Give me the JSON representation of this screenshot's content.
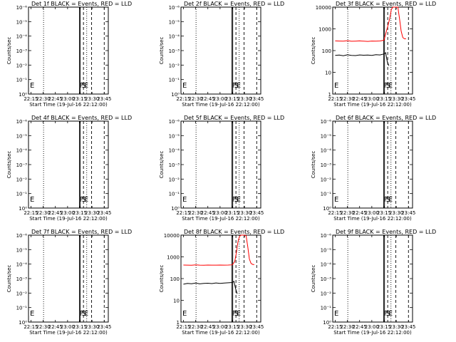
{
  "figure": {
    "x_label": "Start Time (19-Jul-16 22:12:00)",
    "y_label": "Counts/sec"
  },
  "chart_data": [
    {
      "type": "line",
      "title": "Det 1f BLACK = Events, RED = LLD",
      "x_ticks": [
        "22:15",
        "22:30",
        "22:45",
        "23:00",
        "23:15",
        "23:30",
        "23:45"
      ],
      "y_ticks": [
        "10⁰",
        "10⁻¹",
        "10⁻²",
        "10⁻³",
        "10⁻⁴",
        "10⁻⁵",
        "10⁻⁶"
      ],
      "markers": [
        "E",
        "F",
        "S",
        "E"
      ],
      "series": []
    },
    {
      "type": "line",
      "title": "Det 2f BLACK = Events, RED = LLD",
      "x_ticks": [
        "22:15",
        "22:30",
        "22:45",
        "23:00",
        "23:15",
        "23:30",
        "23:45"
      ],
      "y_ticks": [
        "10⁰",
        "10⁻¹",
        "10⁻²",
        "10⁻³",
        "10⁻⁴",
        "10⁻⁵",
        "10⁻⁶"
      ],
      "markers": [
        "E",
        "F",
        "S",
        "E"
      ],
      "series": []
    },
    {
      "type": "line",
      "title": "Det 3f BLACK = Events, RED = LLD",
      "x_ticks": [
        "22:15",
        "22:30",
        "22:45",
        "23:00",
        "23:15",
        "23:30",
        "23:45"
      ],
      "y_ticks": [
        "1",
        "10",
        "100",
        "1000",
        "10000"
      ],
      "markers": [
        "E",
        "F",
        "S",
        "E"
      ],
      "series": [
        {
          "color": "#000000",
          "x": [
            0,
            5,
            10,
            15,
            20,
            25,
            30,
            35,
            40,
            45,
            50,
            55,
            60,
            62,
            64,
            66
          ],
          "y": [
            60,
            62,
            58,
            64,
            60,
            59,
            63,
            61,
            62,
            60,
            65,
            63,
            70,
            80,
            30,
            20
          ]
        },
        {
          "color": "#ff0000",
          "x": [
            0,
            5,
            10,
            15,
            20,
            25,
            30,
            35,
            40,
            45,
            50,
            55,
            60,
            63,
            65,
            67,
            69,
            71,
            73,
            75,
            77,
            79,
            81,
            83,
            85,
            87
          ],
          "y": [
            280,
            275,
            270,
            285,
            268,
            272,
            280,
            270,
            265,
            275,
            270,
            278,
            300,
            800,
            1500,
            3000,
            8000,
            15000,
            16000,
            15000,
            12000,
            3000,
            800,
            400,
            350,
            350
          ]
        }
      ]
    },
    {
      "type": "line",
      "title": "Det 4f BLACK = Events, RED = LLD",
      "x_ticks": [
        "22:15",
        "22:30",
        "22:45",
        "23:00",
        "23:15",
        "23:30",
        "23:45"
      ],
      "y_ticks": [
        "10⁰",
        "10⁻¹",
        "10⁻²",
        "10⁻³",
        "10⁻⁴",
        "10⁻⁵",
        "10⁻⁶"
      ],
      "markers": [
        "E",
        "F",
        "S",
        "E"
      ],
      "series": []
    },
    {
      "type": "line",
      "title": "Det 5f BLACK = Events, RED = LLD",
      "x_ticks": [
        "22:15",
        "22:30",
        "22:45",
        "23:00",
        "23:15",
        "23:30",
        "23:45"
      ],
      "y_ticks": [
        "10⁰",
        "10⁻¹",
        "10⁻²",
        "10⁻³",
        "10⁻⁴",
        "10⁻⁵",
        "10⁻⁶"
      ],
      "markers": [
        "E",
        "F",
        "S",
        "E"
      ],
      "series": []
    },
    {
      "type": "line",
      "title": "Det 6f BLACK = Events, RED = LLD",
      "x_ticks": [
        "22:15",
        "22:30",
        "22:45",
        "23:00",
        "23:15",
        "23:30",
        "23:45"
      ],
      "y_ticks": [
        "10⁰",
        "10⁻¹",
        "10⁻²",
        "10⁻³",
        "10⁻⁴",
        "10⁻⁵",
        "10⁻⁶"
      ],
      "markers": [
        "E",
        "F",
        "S",
        "E"
      ],
      "series": []
    },
    {
      "type": "line",
      "title": "Det 7f BLACK = Events, RED = LLD",
      "x_ticks": [
        "22:15",
        "22:30",
        "22:45",
        "23:00",
        "23:15",
        "23:30",
        "23:45"
      ],
      "y_ticks": [
        "10⁰",
        "10⁻¹",
        "10⁻²",
        "10⁻³",
        "10⁻⁴",
        "10⁻⁵",
        "10⁻⁶"
      ],
      "markers": [
        "E",
        "F",
        "S",
        "E"
      ],
      "series": []
    },
    {
      "type": "line",
      "title": "Det 8f BLACK = Events, RED = LLD",
      "x_ticks": [
        "22:15",
        "22:30",
        "22:45",
        "23:00",
        "23:15",
        "23:30",
        "23:45"
      ],
      "y_ticks": [
        "1",
        "10",
        "100",
        "1000",
        "10000"
      ],
      "markers": [
        "E",
        "F",
        "S",
        "E"
      ],
      "series": [
        {
          "color": "#000000",
          "x": [
            0,
            5,
            10,
            15,
            20,
            25,
            30,
            35,
            40,
            45,
            50,
            55,
            60,
            62,
            64,
            66
          ],
          "y": [
            55,
            60,
            58,
            62,
            57,
            60,
            61,
            59,
            63,
            60,
            62,
            64,
            66,
            75,
            35,
            20
          ]
        },
        {
          "color": "#ff0000",
          "x": [
            0,
            5,
            10,
            15,
            20,
            25,
            30,
            35,
            40,
            45,
            50,
            55,
            60,
            63,
            65,
            67,
            69,
            71,
            73,
            75,
            77,
            79,
            81,
            83,
            85,
            87
          ],
          "y": [
            420,
            415,
            410,
            425,
            418,
            412,
            420,
            415,
            418,
            420,
            416,
            420,
            430,
            600,
            1500,
            5000,
            9000,
            10000,
            10500,
            10000,
            9500,
            3000,
            800,
            500,
            450,
            440
          ]
        }
      ]
    },
    {
      "type": "line",
      "title": "Det 9f BLACK = Events, RED = LLD",
      "x_ticks": [
        "22:15",
        "22:30",
        "22:45",
        "23:00",
        "23:15",
        "23:30",
        "23:45"
      ],
      "y_ticks": [
        "10⁰",
        "10⁻¹",
        "10⁻²",
        "10⁻³",
        "10⁻⁴",
        "10⁻⁵",
        "10⁻⁶"
      ],
      "markers": [
        "E",
        "F",
        "S",
        "E"
      ],
      "series": []
    }
  ]
}
